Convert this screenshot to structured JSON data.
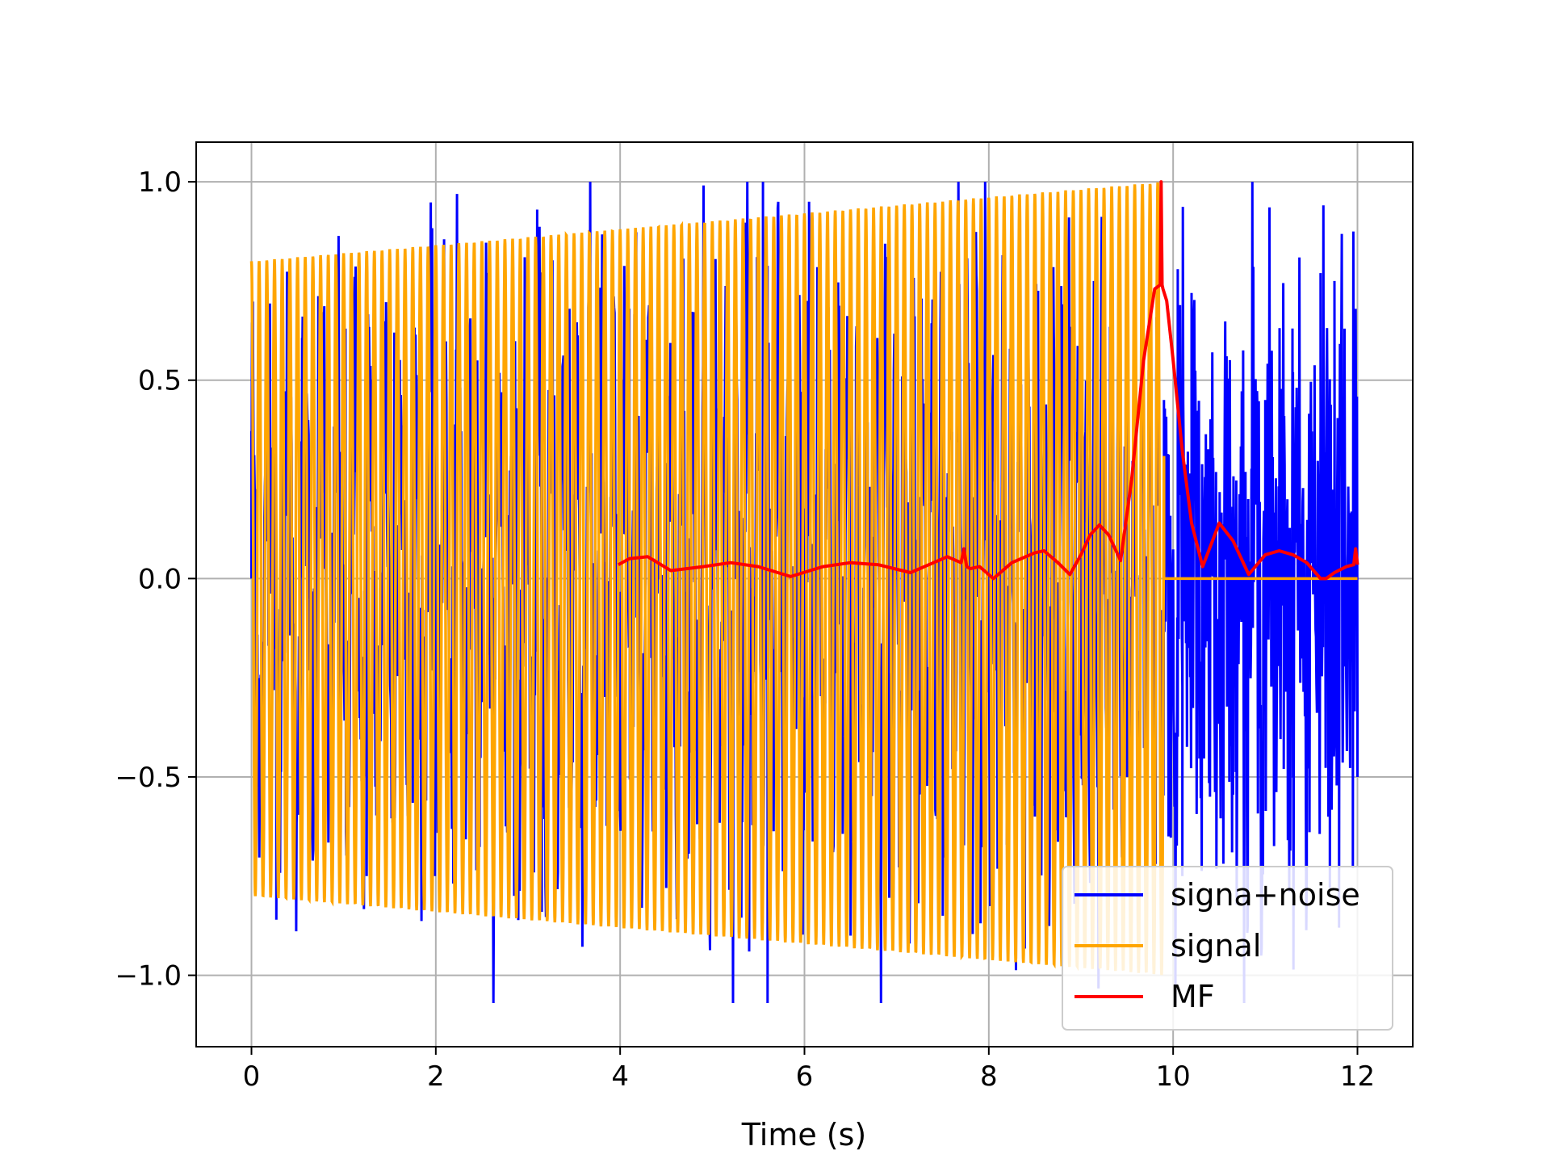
{
  "chart_data": {
    "type": "line",
    "title": "",
    "xlabel": "Time (s)",
    "ylabel": "",
    "xlim": [
      -0.6,
      12.6
    ],
    "ylim": [
      -1.18,
      1.1
    ],
    "xticks": [
      0,
      2,
      4,
      6,
      8,
      10,
      12
    ],
    "xtick_labels": [
      "0",
      "2",
      "4",
      "6",
      "8",
      "10",
      "12"
    ],
    "yticks": [
      -1.0,
      -0.5,
      0.0,
      0.5,
      1.0
    ],
    "ytick_labels": [
      "−1.0",
      "−0.5",
      "0.0",
      "0.5",
      "1.0"
    ],
    "grid": true,
    "legend_position": "lower-right",
    "series": [
      {
        "name": "signa+noise",
        "color": "#0000ff",
        "description": "noisy oscillation; chirp from 0 to 9.9 s plus noise, noise only from 9.9 to 12 s",
        "x": [
          0.0,
          0.27,
          0.33,
          0.55,
          0.95,
          1.02,
          1.25,
          1.55,
          1.99,
          2.0,
          2.45,
          2.85,
          3.1,
          3.15,
          3.45,
          3.6,
          4.1,
          4.5,
          5.0,
          5.4,
          5.55,
          5.6,
          5.75,
          6.05,
          6.5,
          7.0,
          7.5,
          8.0,
          8.5,
          9.0,
          9.5,
          9.9,
          9.95,
          10.05,
          10.1,
          10.2,
          10.4,
          10.6,
          10.8,
          11.0,
          11.2,
          11.3,
          11.45,
          11.6,
          11.7,
          11.75,
          11.8,
          11.85,
          11.95,
          12.0
        ],
        "y": [
          0.0,
          -0.86,
          0.45,
          0.52,
          -0.7,
          0.63,
          -0.75,
          0.62,
          -0.75,
          0.7,
          0.55,
          -0.8,
          0.93,
          -0.84,
          0.68,
          -0.73,
          0.68,
          -0.78,
          0.72,
          -0.94,
          1.0,
          -1.07,
          0.78,
          0.95,
          -0.9,
          0.8,
          -0.85,
          0.5,
          -0.6,
          0.55,
          -0.5,
          0.45,
          -0.65,
          0.78,
          -0.75,
          0.72,
          -0.55,
          0.5,
          -0.55,
          0.45,
          -0.48,
          0.52,
          -0.75,
          0.77,
          -0.78,
          0.75,
          -0.88,
          0.38,
          -0.73,
          -0.5
        ]
      },
      {
        "name": "signal",
        "color": "#ffa500",
        "description": "linear chirp, amplitude ramps from 0.8 to 1.0, active 0 to 9.9 s, zero after",
        "amplitude_start": 0.8,
        "amplitude_end": 1.0,
        "t_start": 0.0,
        "t_end": 9.9,
        "zero_after": 9.9,
        "t_final": 12.0
      },
      {
        "name": "MF",
        "color": "#ff0000",
        "description": "matched filter output, peak near 9.88 s",
        "x": [
          3.98,
          4.1,
          4.3,
          4.55,
          4.9,
          5.2,
          5.5,
          5.85,
          6.2,
          6.5,
          6.8,
          7.15,
          7.35,
          7.55,
          7.7,
          7.73,
          7.76,
          7.8,
          7.9,
          8.05,
          8.25,
          8.5,
          8.6,
          8.75,
          8.88,
          9.0,
          9.1,
          9.2,
          9.3,
          9.43,
          9.55,
          9.68,
          9.8,
          9.86,
          9.87,
          9.88,
          9.89,
          9.93,
          10.0,
          10.1,
          10.2,
          10.32,
          10.5,
          10.65,
          10.82,
          11.0,
          11.15,
          11.3,
          11.45,
          11.6,
          11.66,
          11.75,
          11.88,
          11.96,
          11.98,
          12.0
        ],
        "y": [
          0.035,
          0.05,
          0.055,
          0.02,
          0.03,
          0.04,
          0.03,
          0.005,
          0.03,
          0.04,
          0.035,
          0.015,
          0.035,
          0.055,
          0.04,
          0.075,
          0.03,
          0.025,
          0.03,
          0.0,
          0.04,
          0.065,
          0.07,
          0.04,
          0.01,
          0.06,
          0.11,
          0.135,
          0.11,
          0.045,
          0.25,
          0.55,
          0.73,
          0.74,
          1.0,
          0.74,
          0.73,
          0.7,
          0.55,
          0.32,
          0.14,
          0.03,
          0.14,
          0.095,
          0.01,
          0.06,
          0.07,
          0.06,
          0.04,
          0.0,
          0.0,
          0.015,
          0.03,
          0.035,
          0.075,
          0.035
        ]
      }
    ]
  }
}
